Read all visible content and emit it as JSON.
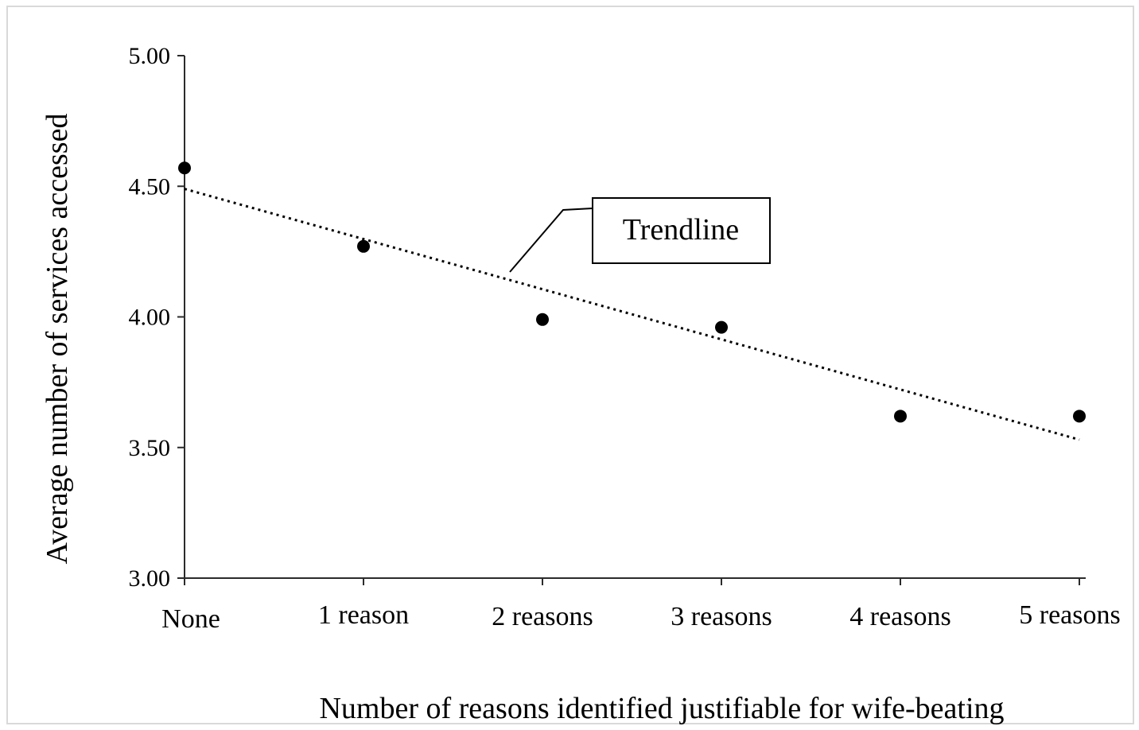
{
  "chart_data": {
    "type": "scatter",
    "xlabel": "Number of reasons identified justifiable for wife-beating",
    "ylabel": "Average number of services accessed",
    "categories": [
      "None",
      "1 reason",
      "2 reasons",
      "3 reasons",
      "4 reasons",
      "5 reasons"
    ],
    "values": [
      4.57,
      4.27,
      3.99,
      3.96,
      3.62,
      3.62
    ],
    "ylim": [
      3.0,
      5.0
    ],
    "yticks": [
      "3.00",
      "3.50",
      "4.00",
      "4.50",
      "5.00"
    ],
    "trendline": {
      "style": "dotted",
      "start": 4.49,
      "end": 3.53
    },
    "annotation": "Trendline",
    "grid": false,
    "legend": "none",
    "colors": {
      "points": "#000000",
      "axis": "#2b2b2b",
      "frame": "#d9d9d9"
    }
  }
}
